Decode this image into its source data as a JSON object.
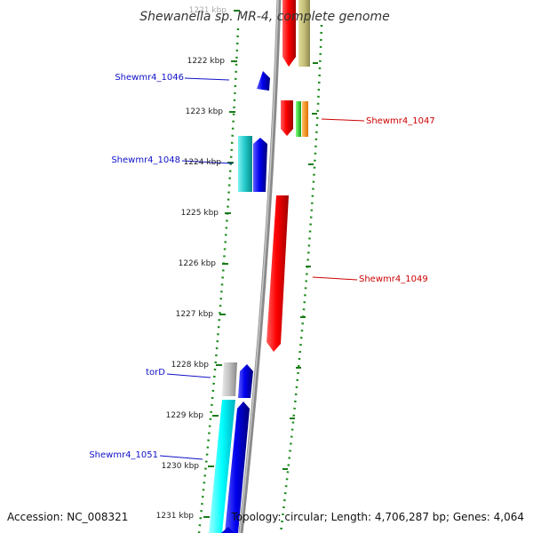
{
  "title": "Shewanella sp. MR-4, complete genome",
  "ticks": [
    "1221 kbp",
    "1222 kbp",
    "1223 kbp",
    "1224 kbp",
    "1225 kbp",
    "1226 kbp",
    "1227 kbp",
    "1228 kbp",
    "1229 kbp",
    "1230 kbp",
    "1231 kbp"
  ],
  "gene_labels": [
    {
      "text": "Shewmr4_1046",
      "color": "#1010c8"
    },
    {
      "text": "Shewmr4_1047",
      "color": "#cc0000"
    },
    {
      "text": "Shewmr4_1048",
      "color": "#1010c8"
    },
    {
      "text": "Shewmr4_1049",
      "color": "#cc0000"
    },
    {
      "text": "torD",
      "color": "#1010c8"
    },
    {
      "text": "Shewmr4_1051",
      "color": "#1010c8"
    }
  ],
  "footer": {
    "accession": "Accession: NC_008321",
    "stats": "Topology: circular; Length: 4,706,287 bp; Genes: 4,064"
  }
}
